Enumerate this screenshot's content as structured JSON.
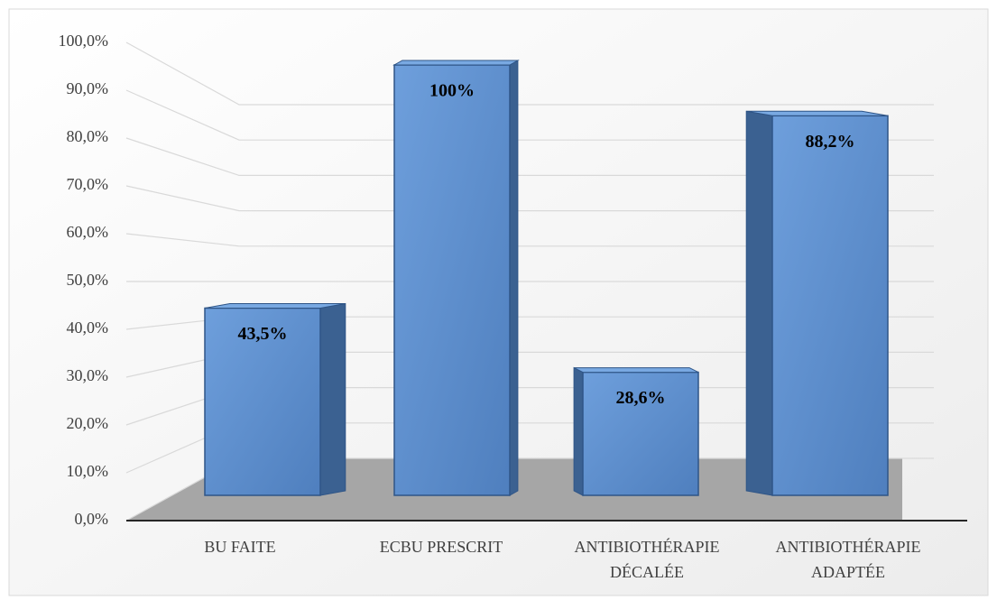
{
  "chart_data": {
    "type": "bar3d",
    "categories": [
      "BU FAITE",
      "ECBU PRESCRIT",
      "ANTIBIOTHÉRAPIE\nDÉCALÉE",
      "ANTIBIOTHÉRAPIE\nADAPTÉE"
    ],
    "values": [
      43.5,
      100,
      28.6,
      88.2
    ],
    "value_labels": [
      "43,5%",
      "100%",
      "28,6%",
      "88,2%"
    ],
    "color": "#5b8cc8",
    "ylim": [
      0,
      100
    ],
    "yticks": [
      {
        "value": 0,
        "label": "0,0%"
      },
      {
        "value": 10,
        "label": "10,0%"
      },
      {
        "value": 20,
        "label": "20,0%"
      },
      {
        "value": 30,
        "label": "30,0%"
      },
      {
        "value": 40,
        "label": "40,0%"
      },
      {
        "value": 50,
        "label": "50,0%"
      },
      {
        "value": 60,
        "label": "60,0%"
      },
      {
        "value": 70,
        "label": "70,0%"
      },
      {
        "value": 80,
        "label": "80,0%"
      },
      {
        "value": 90,
        "label": "90,0%"
      },
      {
        "value": 100,
        "label": "100,0%"
      }
    ],
    "grid": true
  }
}
